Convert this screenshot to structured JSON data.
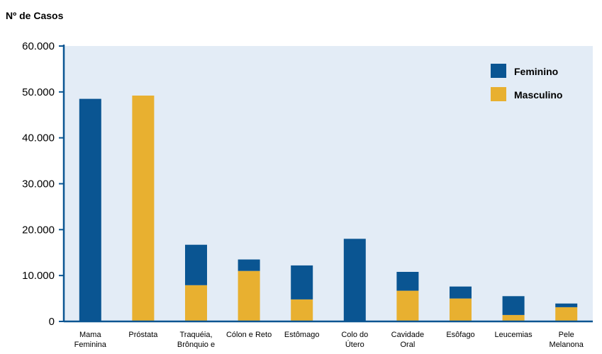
{
  "chart_data": {
    "type": "bar",
    "stacked": true,
    "title": "",
    "ylabel": "Nº de Casos",
    "xlabel": "",
    "ylim": [
      0,
      60000
    ],
    "yticks": [
      0,
      10000,
      20000,
      30000,
      40000,
      50000,
      60000
    ],
    "ytick_labels": [
      "0",
      "10.000",
      "20.000",
      "30.000",
      "40.000",
      "50.000",
      "60.000"
    ],
    "categories": [
      [
        "Mama",
        "Feminina"
      ],
      [
        "Próstata"
      ],
      [
        "Traquéia,",
        "Brônquio e"
      ],
      [
        "Cólon e Reto"
      ],
      [
        "Estômago"
      ],
      [
        "Colo do",
        "Útero"
      ],
      [
        "Cavidade",
        "Oral"
      ],
      [
        "Esôfago"
      ],
      [
        "Leucemias"
      ],
      [
        "Pele",
        "Melanona"
      ]
    ],
    "series": [
      {
        "name": "Feminino",
        "color": "#0a5592",
        "values": [
          48500,
          0,
          8800,
          2500,
          7400,
          18000,
          4100,
          2600,
          4100,
          800
        ]
      },
      {
        "name": "Masculino",
        "color": "#e8b030",
        "values": [
          0,
          49200,
          7900,
          11000,
          4800,
          0,
          6700,
          5000,
          1400,
          3100
        ]
      }
    ],
    "stack_order": [
      "Masculino",
      "Feminino"
    ],
    "grid": false,
    "legend_position": "top-right",
    "background_color": "#e3ecf6",
    "axis_color": "#0a5592"
  }
}
